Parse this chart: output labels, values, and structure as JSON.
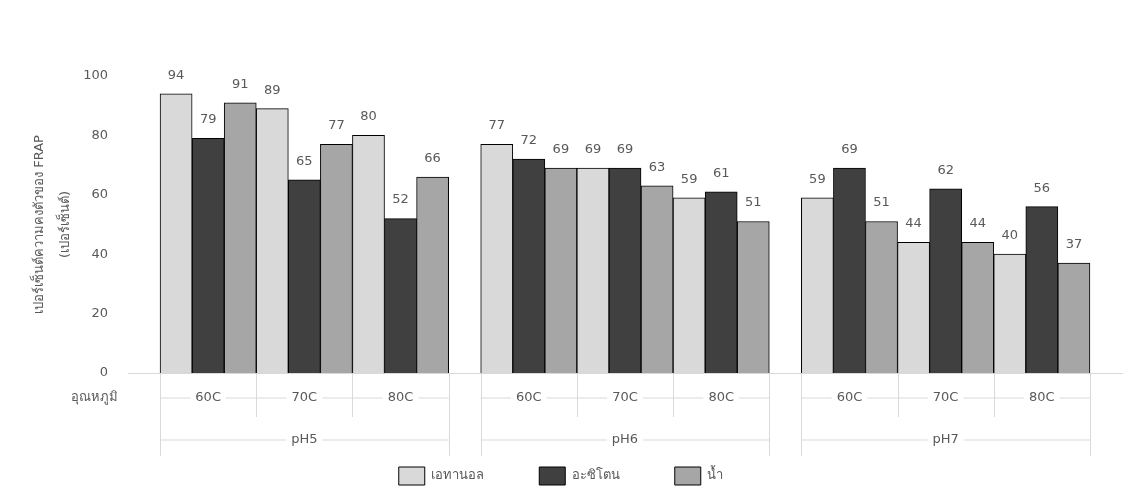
{
  "chart_data": {
    "type": "bar",
    "categories": [
      "60C",
      "70C",
      "80C",
      "60C",
      "70C",
      "80C",
      "60C",
      "70C",
      "80C"
    ],
    "xlabel": "อุณหภูมิ",
    "ylabel": "เปอร์เซ็นต์ความคงตัวของ FRAP\n(เปอร์เซ็นต์)",
    "annotations": [
      "pH5",
      "pH6",
      "pH7"
    ],
    "series": [
      {
        "name": "เอทานอล",
        "color": "#d9d9d9",
        "values": [
          94,
          89,
          80,
          77,
          69,
          59,
          59,
          44,
          40
        ]
      },
      {
        "name": "อะซิโตน",
        "color": "#404040",
        "values": [
          79,
          65,
          52,
          72,
          69,
          61,
          69,
          62,
          56
        ]
      },
      {
        "name": "น้ำ",
        "color": "#a6a6a6",
        "values": [
          91,
          77,
          66,
          69,
          63,
          51,
          51,
          44,
          37
        ]
      }
    ],
    "ylim": [
      0,
      100
    ],
    "yticks": [
      0,
      20,
      40,
      60,
      80,
      100
    ],
    "grid": false,
    "legend": "bottom",
    "data_labels": true
  }
}
